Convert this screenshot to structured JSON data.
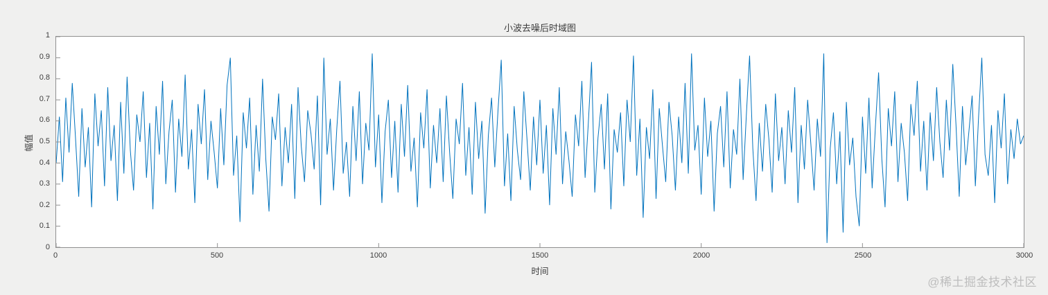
{
  "watermark": "@稀土掘金技术社区",
  "chart_data": {
    "type": "line",
    "title": "小波去噪后时域图",
    "xlabel": "时间",
    "ylabel": "幅值",
    "xlim": [
      0,
      3000
    ],
    "ylim": [
      0,
      1
    ],
    "x_ticks": [
      0,
      500,
      1000,
      1500,
      2000,
      2500,
      3000
    ],
    "y_ticks": [
      0,
      0.1,
      0.2,
      0.3,
      0.4,
      0.5,
      0.6,
      0.7,
      0.8,
      0.9,
      1
    ],
    "legend": null,
    "grid": false,
    "line_color": "#0072BD",
    "figure_background": "#f0f0ef",
    "axes_background": "#ffffff",
    "axis_color": "#8f8f8f",
    "x_start": 0,
    "x_step": 10,
    "values": [
      0.4,
      0.62,
      0.31,
      0.71,
      0.45,
      0.78,
      0.52,
      0.24,
      0.66,
      0.38,
      0.57,
      0.19,
      0.73,
      0.48,
      0.65,
      0.29,
      0.76,
      0.41,
      0.58,
      0.22,
      0.69,
      0.35,
      0.81,
      0.46,
      0.27,
      0.63,
      0.5,
      0.74,
      0.33,
      0.59,
      0.18,
      0.67,
      0.44,
      0.79,
      0.3,
      0.55,
      0.7,
      0.26,
      0.61,
      0.43,
      0.82,
      0.37,
      0.56,
      0.21,
      0.68,
      0.49,
      0.75,
      0.32,
      0.6,
      0.45,
      0.28,
      0.66,
      0.39,
      0.77,
      0.9,
      0.34,
      0.53,
      0.12,
      0.64,
      0.47,
      0.71,
      0.25,
      0.58,
      0.36,
      0.8,
      0.42,
      0.17,
      0.62,
      0.51,
      0.73,
      0.29,
      0.57,
      0.4,
      0.68,
      0.23,
      0.76,
      0.48,
      0.31,
      0.65,
      0.54,
      0.37,
      0.72,
      0.2,
      0.9,
      0.44,
      0.61,
      0.27,
      0.56,
      0.79,
      0.35,
      0.5,
      0.24,
      0.67,
      0.41,
      0.74,
      0.3,
      0.59,
      0.46,
      0.92,
      0.38,
      0.63,
      0.21,
      0.55,
      0.7,
      0.33,
      0.6,
      0.26,
      0.68,
      0.43,
      0.77,
      0.36,
      0.52,
      0.19,
      0.64,
      0.47,
      0.75,
      0.28,
      0.58,
      0.4,
      0.66,
      0.31,
      0.72,
      0.45,
      0.23,
      0.61,
      0.49,
      0.78,
      0.34,
      0.57,
      0.25,
      0.69,
      0.42,
      0.6,
      0.16,
      0.53,
      0.71,
      0.38,
      0.65,
      0.89,
      0.29,
      0.54,
      0.22,
      0.67,
      0.46,
      0.32,
      0.74,
      0.51,
      0.27,
      0.62,
      0.39,
      0.7,
      0.35,
      0.58,
      0.2,
      0.66,
      0.44,
      0.76,
      0.3,
      0.55,
      0.41,
      0.24,
      0.63,
      0.48,
      0.79,
      0.33,
      0.59,
      0.88,
      0.26,
      0.52,
      0.68,
      0.37,
      0.73,
      0.18,
      0.56,
      0.45,
      0.64,
      0.29,
      0.7,
      0.5,
      0.91,
      0.34,
      0.61,
      0.14,
      0.57,
      0.42,
      0.75,
      0.23,
      0.66,
      0.48,
      0.31,
      0.69,
      0.53,
      0.27,
      0.62,
      0.4,
      0.78,
      0.35,
      0.92,
      0.46,
      0.58,
      0.25,
      0.71,
      0.43,
      0.6,
      0.17,
      0.54,
      0.67,
      0.38,
      0.74,
      0.28,
      0.56,
      0.44,
      0.8,
      0.32,
      0.63,
      0.91,
      0.47,
      0.22,
      0.59,
      0.36,
      0.68,
      0.51,
      0.26,
      0.73,
      0.41,
      0.57,
      0.3,
      0.65,
      0.45,
      0.76,
      0.21,
      0.58,
      0.37,
      0.7,
      0.49,
      0.27,
      0.61,
      0.43,
      0.92,
      0.02,
      0.47,
      0.64,
      0.3,
      0.55,
      0.07,
      0.69,
      0.39,
      0.52,
      0.24,
      0.1,
      0.62,
      0.35,
      0.71,
      0.28,
      0.57,
      0.83,
      0.42,
      0.19,
      0.66,
      0.48,
      0.74,
      0.31,
      0.59,
      0.45,
      0.22,
      0.68,
      0.53,
      0.79,
      0.36,
      0.6,
      0.27,
      0.64,
      0.41,
      0.76,
      0.5,
      0.33,
      0.7,
      0.46,
      0.87,
      0.58,
      0.24,
      0.67,
      0.39,
      0.55,
      0.72,
      0.29,
      0.62,
      0.9,
      0.44,
      0.34,
      0.58,
      0.21,
      0.65,
      0.47,
      0.73,
      0.3,
      0.56,
      0.42,
      0.61,
      0.49,
      0.53
    ]
  }
}
